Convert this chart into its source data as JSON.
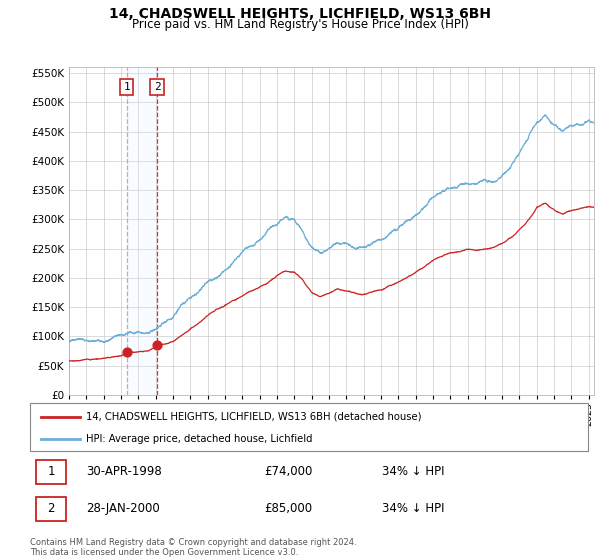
{
  "title": "14, CHADSWELL HEIGHTS, LICHFIELD, WS13 6BH",
  "subtitle": "Price paid vs. HM Land Registry's House Price Index (HPI)",
  "ylim": [
    0,
    560000
  ],
  "yticks": [
    0,
    50000,
    100000,
    150000,
    200000,
    250000,
    300000,
    350000,
    400000,
    450000,
    500000,
    550000
  ],
  "xlim_start": 1995.0,
  "xlim_end": 2025.3,
  "purchase1_date": 1998.33,
  "purchase1_price": 74000,
  "purchase2_date": 2000.08,
  "purchase2_price": 85000,
  "legend_line1": "14, CHADSWELL HEIGHTS, LICHFIELD, WS13 6BH (detached house)",
  "legend_line2": "HPI: Average price, detached house, Lichfield",
  "table_row1_num": "1",
  "table_row1_date": "30-APR-1998",
  "table_row1_price": "£74,000",
  "table_row1_hpi": "34% ↓ HPI",
  "table_row2_num": "2",
  "table_row2_date": "28-JAN-2000",
  "table_row2_price": "£85,000",
  "table_row2_hpi": "34% ↓ HPI",
  "footnote": "Contains HM Land Registry data © Crown copyright and database right 2024.\nThis data is licensed under the Open Government Licence v3.0.",
  "hpi_color": "#6baed6",
  "price_color": "#cc2222",
  "vline1_color": "#aaaaaa",
  "vline2_color": "#cc2222",
  "shade_color": "#ddeeff",
  "grid_color": "#cccccc",
  "background_color": "#ffffff"
}
